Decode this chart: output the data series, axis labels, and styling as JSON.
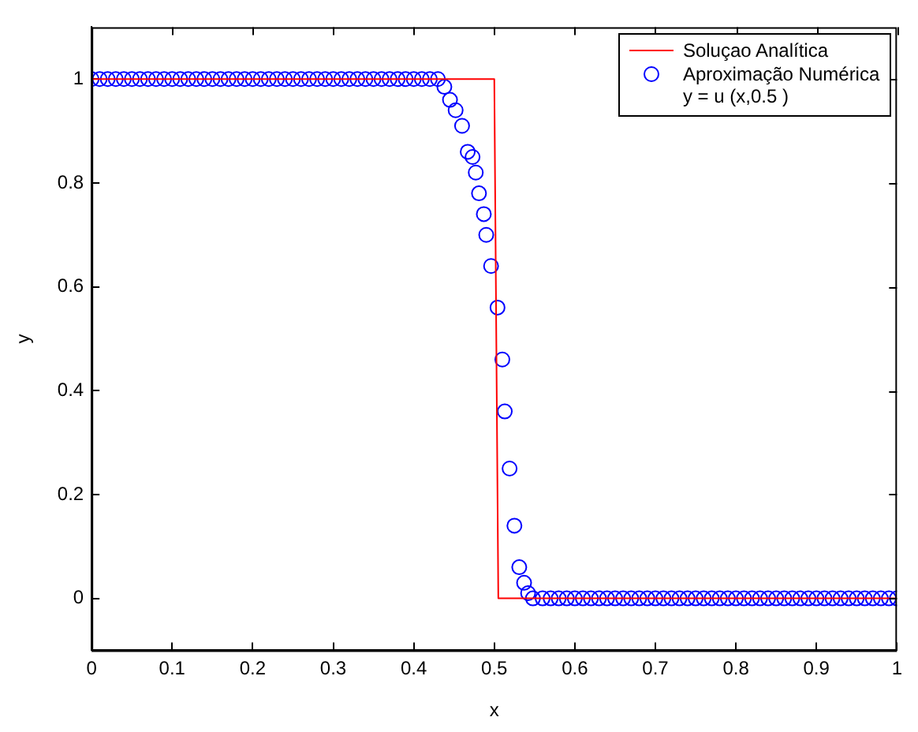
{
  "chart_data": {
    "type": "scatter",
    "xlabel": "x",
    "ylabel": "y",
    "xlim": [
      0,
      1
    ],
    "ylim": [
      -0.1,
      1.1
    ],
    "xticks": [
      0,
      0.1,
      0.2,
      0.3,
      0.4,
      0.5,
      0.6,
      0.7,
      0.8,
      0.9,
      1
    ],
    "yticks": [
      0,
      0.2,
      0.4,
      0.6,
      0.8,
      1
    ],
    "grid": false,
    "legend": "top right",
    "marker": "circle",
    "series": [
      {
        "name": "Soluçao Analítica",
        "type": "line",
        "marker": "none",
        "line_style": "solid",
        "color": "#ff0000",
        "x": [
          0,
          0.5,
          0.505,
          1
        ],
        "values": [
          1,
          1,
          0,
          0
        ]
      },
      {
        "name": "Aproximação Numérica\ny = u (x,0.5 )",
        "color": "#0000ff",
        "x": [
          0,
          0.01,
          0.02,
          0.03,
          0.04,
          0.05,
          0.06,
          0.07,
          0.08,
          0.09,
          0.1,
          0.11,
          0.12,
          0.13,
          0.14,
          0.15,
          0.16,
          0.17,
          0.18,
          0.19,
          0.2,
          0.21,
          0.22,
          0.23,
          0.24,
          0.25,
          0.26,
          0.27,
          0.28,
          0.29,
          0.3,
          0.31,
          0.32,
          0.33,
          0.34,
          0.35,
          0.36,
          0.37,
          0.38,
          0.39,
          0.4,
          0.41,
          0.42,
          0.43,
          0.438,
          0.445,
          0.452,
          0.46,
          0.467,
          0.473,
          0.477,
          0.481,
          0.487,
          0.49,
          0.496,
          0.504,
          0.51,
          0.513,
          0.519,
          0.525,
          0.531,
          0.537,
          0.542,
          0.548,
          0.56,
          0.57,
          0.58,
          0.59,
          0.6,
          0.61,
          0.62,
          0.63,
          0.64,
          0.65,
          0.66,
          0.67,
          0.68,
          0.69,
          0.7,
          0.71,
          0.72,
          0.73,
          0.74,
          0.75,
          0.76,
          0.77,
          0.78,
          0.79,
          0.8,
          0.81,
          0.82,
          0.83,
          0.84,
          0.85,
          0.86,
          0.87,
          0.88,
          0.89,
          0.9,
          0.91,
          0.92,
          0.93,
          0.94,
          0.95,
          0.96,
          0.97,
          0.98,
          0.99,
          1
        ],
        "values": [
          1,
          1,
          1,
          1,
          1,
          1,
          1,
          1,
          1,
          1,
          1,
          1,
          1,
          1,
          1,
          1,
          1,
          1,
          1,
          1,
          1,
          1,
          1,
          1,
          1,
          1,
          1,
          1,
          1,
          1,
          1,
          1,
          1,
          1,
          1,
          1,
          1,
          1,
          1,
          1,
          1,
          1,
          1,
          1,
          0.985,
          0.96,
          0.94,
          0.91,
          0.86,
          0.85,
          0.82,
          0.78,
          0.74,
          0.7,
          0.64,
          0.56,
          0.46,
          0.36,
          0.25,
          0.14,
          0.06,
          0.03,
          0.01,
          0,
          0,
          0,
          0,
          0,
          0,
          0,
          0,
          0,
          0,
          0,
          0,
          0,
          0,
          0,
          0,
          0,
          0,
          0,
          0,
          0,
          0,
          0,
          0,
          0,
          0,
          0,
          0,
          0,
          0,
          0,
          0,
          0,
          0,
          0,
          0,
          0,
          0,
          0,
          0,
          0,
          0,
          0,
          0,
          0,
          0
        ]
      }
    ]
  }
}
